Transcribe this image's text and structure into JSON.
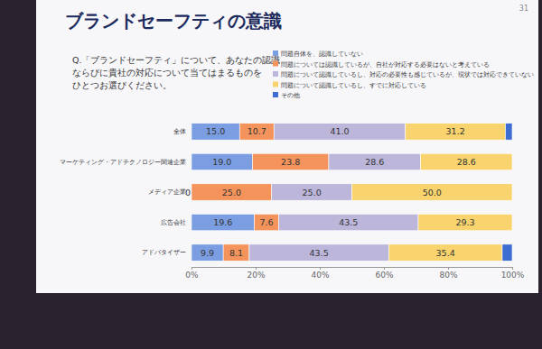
{
  "chart_data": {
    "type": "bar",
    "title": "ブランドセーフティの意識",
    "subtitle": "Q.「ブランドセーフティ」について、あなたの認識\nならびに貴社の対応について当てはまるものを\nひとつお選びください。",
    "annotations": [
      "31"
    ],
    "orientation": "horizontal",
    "stacked": true,
    "data_labels": true,
    "legend": "top-right",
    "grid": false,
    "categories": [
      "全体",
      "マーケティング・アドテクノロジー関連企業",
      "メディア企業",
      "広告会社",
      "アドバタイザー"
    ],
    "xlim": [
      0,
      100
    ],
    "xticks": [
      {
        "value": 0,
        "label": "0%"
      },
      {
        "value": 20,
        "label": "20%"
      },
      {
        "value": 40,
        "label": "40%"
      },
      {
        "value": 60,
        "label": "60%"
      },
      {
        "value": 80,
        "label": "80%"
      },
      {
        "value": 100,
        "label": "100%"
      }
    ],
    "series": [
      {
        "name": "問題自体を、認識していない",
        "color": "#7b9de2",
        "values": [
          15.0,
          19.0,
          0,
          19.6,
          9.9
        ],
        "value_labels": [
          "15.0",
          "19.0",
          "0",
          "19.6",
          "9.9"
        ]
      },
      {
        "name": "問題については認識しているが、自社が対応する必要はないと考えている",
        "color": "#f5935c",
        "values": [
          10.7,
          23.8,
          25.0,
          7.6,
          8.1
        ],
        "value_labels": [
          "10.7",
          "23.8",
          "25.0",
          "7.6",
          "8.1"
        ]
      },
      {
        "name": "問題について認識しているし、対応の必要性も感じているが、現状では対応できていない",
        "color": "#bbb6da",
        "values": [
          41.0,
          28.6,
          25.0,
          43.5,
          43.5
        ],
        "value_labels": [
          "41.0",
          "28.6",
          "25.0",
          "43.5",
          "43.5"
        ]
      },
      {
        "name": "問題について認識しているし、すでに対応している",
        "color": "#f8d36e",
        "values": [
          31.2,
          28.6,
          50.0,
          29.3,
          35.4
        ],
        "value_labels": [
          "31.2",
          "28.6",
          "50.0",
          "29.3",
          "35.4"
        ]
      },
      {
        "name": "その他",
        "color": "#3d6dd0",
        "values": [
          2.1,
          0,
          0,
          0,
          3.1
        ],
        "value_labels": [
          null,
          null,
          null,
          null,
          null
        ]
      }
    ]
  }
}
